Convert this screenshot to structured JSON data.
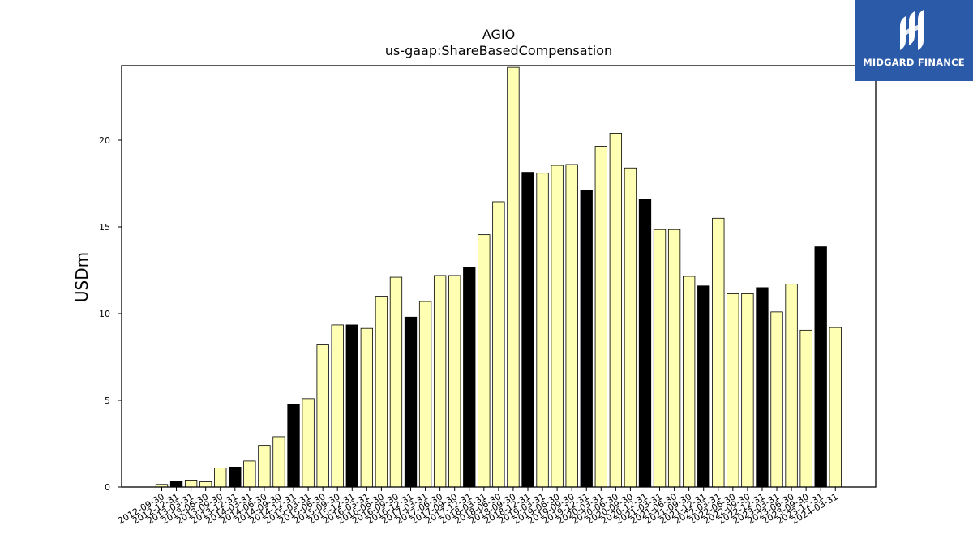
{
  "chart_data": {
    "type": "bar",
    "title": "AGIO",
    "subtitle": "us-gaap:ShareBasedCompensation",
    "xlabel": "",
    "ylabel": "USDm",
    "ylim": [
      0,
      24.3
    ],
    "yticks": [
      0,
      5,
      10,
      15,
      20
    ],
    "grid": false,
    "colors": {
      "normal": "#ffffb3",
      "highlight": "#000000",
      "edge": "#000000"
    },
    "categories": [
      "2012-09-30",
      "2012-12-31",
      "2013-03-31",
      "2013-06-30",
      "2013-09-30",
      "2013-12-31",
      "2014-03-31",
      "2014-06-30",
      "2014-09-30",
      "2014-12-31",
      "2015-03-31",
      "2015-06-30",
      "2015-09-30",
      "2015-12-31",
      "2016-03-31",
      "2016-06-30",
      "2016-09-30",
      "2016-12-31",
      "2017-03-31",
      "2017-06-30",
      "2017-09-30",
      "2017-12-31",
      "2018-03-31",
      "2018-06-30",
      "2018-09-30",
      "2018-12-31",
      "2019-03-31",
      "2019-06-30",
      "2019-09-30",
      "2019-12-31",
      "2020-03-31",
      "2020-06-30",
      "2020-09-30",
      "2020-12-31",
      "2021-03-31",
      "2021-06-30",
      "2021-09-30",
      "2021-12-31",
      "2022-03-31",
      "2022-06-30",
      "2022-09-30",
      "2022-12-31",
      "2023-03-31",
      "2023-06-30",
      "2023-09-30",
      "2023-12-31",
      "2024-03-31"
    ],
    "values": [
      0.15,
      0.35,
      0.4,
      0.3,
      1.1,
      1.15,
      1.5,
      2.4,
      2.9,
      4.75,
      5.1,
      8.2,
      9.35,
      9.35,
      9.15,
      11.0,
      12.1,
      9.8,
      10.7,
      12.2,
      12.2,
      12.65,
      14.55,
      16.45,
      24.2,
      18.15,
      18.1,
      18.55,
      18.6,
      17.1,
      19.65,
      20.4,
      18.4,
      16.6,
      14.85,
      14.85,
      12.15,
      11.6,
      15.5,
      11.15,
      11.15,
      11.5,
      10.1,
      11.7,
      9.05,
      13.85,
      9.2
    ],
    "highlight": [
      false,
      true,
      false,
      false,
      false,
      true,
      false,
      false,
      false,
      true,
      false,
      false,
      false,
      true,
      false,
      false,
      false,
      true,
      false,
      false,
      false,
      true,
      false,
      false,
      false,
      true,
      false,
      false,
      false,
      true,
      false,
      false,
      false,
      true,
      false,
      false,
      false,
      true,
      false,
      false,
      false,
      true,
      false,
      false,
      false,
      true,
      false
    ]
  },
  "logo": {
    "text": "MIDGARD FINANCE",
    "icon": "midgard-logo-icon",
    "background": "#2b5aa8"
  }
}
